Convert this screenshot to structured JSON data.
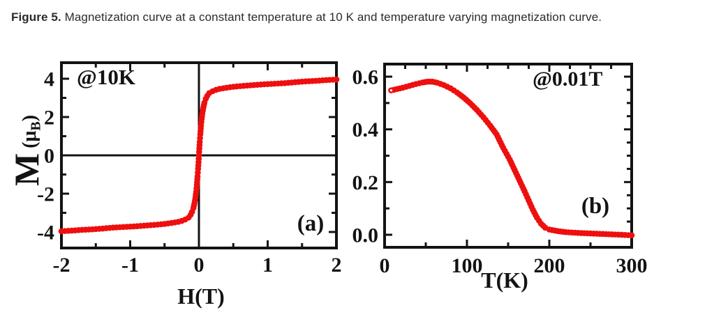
{
  "caption": {
    "label": "Figure 5.",
    "text": " Magnetization curve at a constant temperature at 10 K and temperature varying magnetization curve."
  },
  "colors": {
    "data": "#ee0f0f",
    "axis": "#131313",
    "caption_text": "#2b2b2b",
    "background": "#ffffff"
  },
  "chart_data": [
    {
      "id": "chart-a",
      "type": "scatter",
      "annotation": "@10K",
      "panel_label": "(a)",
      "xlabel": "H(T)",
      "ylabel_m": "M",
      "ylabel_pre": " (μ",
      "ylabel_sub": "B",
      "ylabel_post": ")",
      "xlim": [
        -2,
        2
      ],
      "ylim": [
        -4.836,
        4.836
      ],
      "xticks": [
        {
          "v": -2,
          "label": "-2"
        },
        {
          "v": -1,
          "label": "-1"
        },
        {
          "v": 0,
          "label": "0"
        },
        {
          "v": 1,
          "label": "1"
        },
        {
          "v": 2,
          "label": "2"
        }
      ],
      "xminor_bottom": [
        -1.5,
        -0.5,
        0.5,
        1.5
      ],
      "xminor_top": [
        -1.5,
        -0.5,
        0.5,
        1.5
      ],
      "yticks": [
        {
          "v": -4,
          "label": "-4"
        },
        {
          "v": -2,
          "label": "-2"
        },
        {
          "v": 0,
          "label": "0"
        },
        {
          "v": 2,
          "label": "2"
        },
        {
          "v": 4,
          "label": "4"
        }
      ],
      "yminor_left": [
        -3,
        -1,
        1,
        3
      ],
      "yminor_right": [
        -3,
        -1,
        1,
        3
      ],
      "zero_lines": true,
      "first_point_open": false,
      "x": [
        -2.0,
        -1.85,
        -1.7,
        -1.55,
        -1.4,
        -1.25,
        -1.1,
        -0.95,
        -0.8,
        -0.65,
        -0.5,
        -0.4,
        -0.3,
        -0.25,
        -0.2,
        -0.15,
        -0.12,
        -0.1,
        -0.08,
        -0.065,
        -0.05,
        -0.04,
        -0.03,
        -0.02,
        -0.012,
        -0.006,
        0,
        0.006,
        0.012,
        0.02,
        0.03,
        0.04,
        0.05,
        0.065,
        0.08,
        0.1,
        0.12,
        0.15,
        0.2,
        0.25,
        0.3,
        0.4,
        0.5,
        0.65,
        0.8,
        0.95,
        1.1,
        1.25,
        1.4,
        1.55,
        1.7,
        1.85,
        2.0
      ],
      "y": [
        -3.96,
        -3.93,
        -3.89,
        -3.86,
        -3.82,
        -3.77,
        -3.74,
        -3.71,
        -3.67,
        -3.63,
        -3.58,
        -3.53,
        -3.47,
        -3.42,
        -3.35,
        -3.25,
        -3.1,
        -2.95,
        -2.75,
        -2.5,
        -2.2,
        -1.9,
        -1.55,
        -1.1,
        -0.7,
        -0.36,
        0,
        0.36,
        0.7,
        1.1,
        1.55,
        1.9,
        2.2,
        2.5,
        2.75,
        2.95,
        3.1,
        3.25,
        3.35,
        3.42,
        3.47,
        3.53,
        3.58,
        3.63,
        3.67,
        3.71,
        3.74,
        3.77,
        3.82,
        3.86,
        3.89,
        3.93,
        3.96
      ]
    },
    {
      "id": "chart-b",
      "type": "scatter",
      "annotation": "@0.01T",
      "panel_label": "(b)",
      "xlabel": "T(K)",
      "xlim": [
        0,
        300
      ],
      "ylim": [
        -0.0476,
        0.6477
      ],
      "xticks": [
        {
          "v": 0,
          "label": "0"
        },
        {
          "v": 100,
          "label": "100"
        },
        {
          "v": 200,
          "label": "200"
        },
        {
          "v": 300,
          "label": "300"
        }
      ],
      "xminor_bottom": [
        50,
        150,
        250
      ],
      "xminor_top": [
        25,
        50,
        75,
        125,
        150,
        175,
        225,
        250,
        275
      ],
      "yticks": [
        {
          "v": 0,
          "label": "0.0"
        },
        {
          "v": 0.2,
          "label": "0.2"
        },
        {
          "v": 0.4,
          "label": "0.4"
        },
        {
          "v": 0.6,
          "label": "0.6"
        }
      ],
      "yminor_left": [
        0.1,
        0.3,
        0.5
      ],
      "yminor_right": [
        0.05,
        0.1,
        0.15,
        0.25,
        0.3,
        0.35,
        0.45,
        0.5,
        0.55
      ],
      "zero_lines": false,
      "first_point_open": true,
      "x": [
        8,
        15,
        22,
        30,
        38,
        46,
        52,
        58,
        64,
        72,
        80,
        88,
        96,
        104,
        112,
        120,
        128,
        136,
        144,
        152,
        158,
        164,
        170,
        175,
        180,
        185,
        190,
        195,
        200,
        210,
        220,
        235,
        250,
        265,
        280,
        300
      ],
      "y": [
        0.548,
        0.553,
        0.558,
        0.565,
        0.572,
        0.578,
        0.581,
        0.581,
        0.577,
        0.568,
        0.556,
        0.54,
        0.521,
        0.499,
        0.474,
        0.446,
        0.415,
        0.381,
        0.33,
        0.285,
        0.245,
        0.205,
        0.165,
        0.13,
        0.095,
        0.065,
        0.042,
        0.027,
        0.02,
        0.014,
        0.01,
        0.007,
        0.005,
        0.003,
        0.001,
        -0.002
      ]
    }
  ]
}
